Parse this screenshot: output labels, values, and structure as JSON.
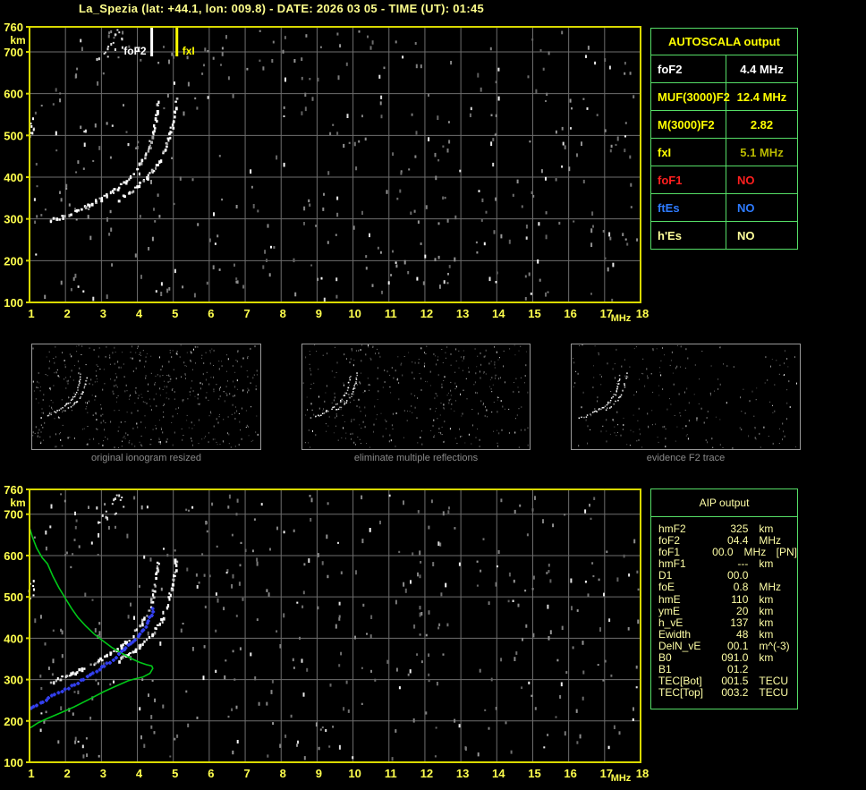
{
  "header": {
    "title": "La_Spezia (lat: +44.1, lon: 009.8) - DATE: 2026 03 05 - TIME (UT): 01:45"
  },
  "colors": {
    "plot_border": "#d9d900",
    "axis_label": "#ffff4d",
    "grid": "#6e6e6e",
    "panel_border": "#55dd66",
    "trace_white": "#ffffff",
    "profile_green": "#00c818",
    "restored_blue": "#3340f0",
    "caption_gray": "#8a8a8a",
    "title_yellow": "#ffff8c"
  },
  "autoscala": {
    "title": "AUTOSCALA output",
    "rows": [
      {
        "label": "foF2",
        "value": "4.4 MHz",
        "color": "#ffffff",
        "value_color": "#ffffff",
        "align": "center"
      },
      {
        "label": "MUF(3000)F2",
        "value": "12.4 MHz",
        "color": "#ffff00",
        "value_color": "#ffff00",
        "align": "center"
      },
      {
        "label": "M(3000)F2",
        "value": "2.82",
        "color": "#ffff00",
        "value_color": "#ffff00",
        "align": "center"
      },
      {
        "label": "fxI",
        "value": "5.1 MHz",
        "color": "#ffff00",
        "value_color": "#b9b900",
        "align": "center"
      },
      {
        "label": "foF1",
        "value": "NO",
        "color": "#ff1f1f",
        "value_color": "#ff1f1f",
        "align": "left"
      },
      {
        "label": "ftEs",
        "value": "NO",
        "color": "#2e7bff",
        "value_color": "#2e7bff",
        "align": "left"
      },
      {
        "label": "h'Es",
        "value": "NO",
        "color": "#ffff9b",
        "value_color": "#ffff9b",
        "align": "left"
      }
    ]
  },
  "aip": {
    "title": "AIP output",
    "rows": [
      {
        "label": "hmF2",
        "value": "325",
        "unit": "km",
        "note": ""
      },
      {
        "label": "foF2",
        "value": "04.4",
        "unit": "MHz",
        "note": ""
      },
      {
        "label": "foF1",
        "value": "00.0",
        "unit": "MHz",
        "note": "[PN]"
      },
      {
        "label": "hmF1",
        "value": "---",
        "unit": "km",
        "note": ""
      },
      {
        "label": "D1",
        "value": "00.0",
        "unit": "",
        "note": ""
      },
      {
        "label": "foE",
        "value": "0.8",
        "unit": "MHz",
        "note": ""
      },
      {
        "label": "hmE",
        "value": "110",
        "unit": "km",
        "note": ""
      },
      {
        "label": "ymE",
        "value": "20",
        "unit": "km",
        "note": ""
      },
      {
        "label": "h_vE",
        "value": "137",
        "unit": "km",
        "note": ""
      },
      {
        "label": "Ewidth",
        "value": "48",
        "unit": "km",
        "note": ""
      },
      {
        "label": "DelN_vE",
        "value": "00.1",
        "unit": "m^(-3)",
        "note": ""
      },
      {
        "label": "B0",
        "value": "091.0",
        "unit": "km",
        "note": ""
      },
      {
        "label": "B1",
        "value": "01.2",
        "unit": "",
        "note": ""
      },
      {
        "label": "TEC[Bot]",
        "value": "001.5",
        "unit": "TECU",
        "note": ""
      },
      {
        "label": "TEC[Top]",
        "value": "003.2",
        "unit": "TECU",
        "note": ""
      }
    ]
  },
  "thumbnails": [
    {
      "caption": "original ionogram resized",
      "noise": 520
    },
    {
      "caption": "eliminate multiple reflections",
      "noise": 400
    },
    {
      "caption": "evidence F2 trace",
      "noise": 230
    }
  ],
  "chart_data": [
    {
      "id": "top_ionogram",
      "type": "scatter",
      "title": "ionogram with AUTOSCALA frequency markers",
      "xlabel": "MHz",
      "ylabel": "km",
      "xlim": [
        1,
        18
      ],
      "ylim": [
        100,
        760
      ],
      "xticks": [
        1,
        2,
        3,
        4,
        5,
        6,
        7,
        8,
        9,
        10,
        11,
        12,
        13,
        14,
        15,
        16,
        17,
        18
      ],
      "yticks": [
        760,
        700,
        600,
        500,
        400,
        300,
        200,
        100
      ],
      "grid": true,
      "noise_dots": 400,
      "series": [
        {
          "name": "F2-O-trace",
          "color": "#ffffff",
          "style": "dotted-trace",
          "points": [
            [
              1.55,
              298
            ],
            [
              1.7,
              302
            ],
            [
              1.9,
              307
            ],
            [
              2.1,
              314
            ],
            [
              2.3,
              322
            ],
            [
              2.55,
              332
            ],
            [
              2.8,
              344
            ],
            [
              3.05,
              356
            ],
            [
              3.3,
              369
            ],
            [
              3.5,
              381
            ],
            [
              3.7,
              396
            ],
            [
              3.9,
              414
            ],
            [
              4.05,
              432
            ],
            [
              4.2,
              452
            ],
            [
              4.3,
              472
            ],
            [
              4.38,
              495
            ],
            [
              4.44,
              520
            ],
            [
              4.49,
              545
            ],
            [
              4.53,
              568
            ],
            [
              4.56,
              590
            ]
          ]
        },
        {
          "name": "F2-X-trace",
          "color": "#e8e8e8",
          "style": "dotted-trace",
          "points": [
            [
              3.45,
              350
            ],
            [
              3.65,
              360
            ],
            [
              3.85,
              372
            ],
            [
              4.05,
              386
            ],
            [
              4.25,
              402
            ],
            [
              4.45,
              420
            ],
            [
              4.6,
              440
            ],
            [
              4.72,
              462
            ],
            [
              4.82,
              485
            ],
            [
              4.9,
              508
            ],
            [
              4.96,
              532
            ],
            [
              5.01,
              556
            ],
            [
              5.04,
              578
            ],
            [
              5.06,
              598
            ]
          ]
        },
        {
          "name": "upper-echo-speckle",
          "color": "#dddddd",
          "style": "dots",
          "points": [
            [
              2.9,
              682
            ],
            [
              3.05,
              700
            ],
            [
              3.15,
              712
            ],
            [
              3.25,
              725
            ],
            [
              3.35,
              742
            ],
            [
              3.45,
              752
            ],
            [
              3.55,
              738
            ],
            [
              3.4,
              706
            ],
            [
              3.6,
              715
            ],
            [
              3.2,
              690
            ]
          ]
        },
        {
          "name": "left-edge-artifact",
          "color": "#ffffff",
          "style": "dots",
          "points": [
            [
              1.03,
              503
            ],
            [
              1.03,
              512
            ],
            [
              1.04,
              521
            ],
            [
              1.03,
              530
            ],
            [
              1.04,
              540
            ]
          ]
        }
      ],
      "annotations": [
        {
          "label": "foF2",
          "x": 4.4,
          "color": "#ffffff",
          "side": "left"
        },
        {
          "label": "fxI",
          "x": 5.1,
          "color": "#ffff00",
          "side": "right"
        }
      ]
    },
    {
      "id": "bottom_profile",
      "type": "scatter",
      "title": "ionogram with AIP electron density profile",
      "xlabel": "MHz",
      "ylabel": "km",
      "xlim": [
        1,
        18
      ],
      "ylim": [
        100,
        760
      ],
      "xticks": [
        1,
        2,
        3,
        4,
        5,
        6,
        7,
        8,
        9,
        10,
        11,
        12,
        13,
        14,
        15,
        16,
        17,
        18
      ],
      "yticks": [
        760,
        700,
        600,
        500,
        400,
        300,
        200,
        100
      ],
      "grid": true,
      "noise_dots": 400,
      "series": [
        {
          "name": "F2-O-trace",
          "color": "#ffffff",
          "style": "dotted-trace",
          "points": [
            [
              1.55,
              298
            ],
            [
              1.7,
              302
            ],
            [
              1.9,
              307
            ],
            [
              2.1,
              314
            ],
            [
              2.3,
              322
            ],
            [
              2.55,
              332
            ],
            [
              2.8,
              344
            ],
            [
              3.05,
              356
            ],
            [
              3.3,
              369
            ],
            [
              3.5,
              381
            ],
            [
              3.7,
              396
            ],
            [
              3.9,
              414
            ],
            [
              4.05,
              432
            ],
            [
              4.2,
              452
            ],
            [
              4.3,
              472
            ],
            [
              4.38,
              495
            ],
            [
              4.44,
              520
            ],
            [
              4.49,
              545
            ],
            [
              4.53,
              568
            ],
            [
              4.56,
              590
            ]
          ]
        },
        {
          "name": "F2-X-trace",
          "color": "#e8e8e8",
          "style": "dotted-trace",
          "points": [
            [
              3.45,
              350
            ],
            [
              3.65,
              360
            ],
            [
              3.85,
              372
            ],
            [
              4.05,
              386
            ],
            [
              4.25,
              402
            ],
            [
              4.45,
              420
            ],
            [
              4.6,
              440
            ],
            [
              4.72,
              462
            ],
            [
              4.82,
              485
            ],
            [
              4.9,
              508
            ],
            [
              4.96,
              532
            ],
            [
              5.01,
              556
            ],
            [
              5.04,
              578
            ],
            [
              5.06,
              598
            ]
          ]
        },
        {
          "name": "upper-echo-speckle",
          "color": "#dddddd",
          "style": "dots",
          "points": [
            [
              2.9,
              682
            ],
            [
              3.05,
              700
            ],
            [
              3.15,
              712
            ],
            [
              3.25,
              725
            ],
            [
              3.35,
              742
            ],
            [
              3.45,
              752
            ],
            [
              3.55,
              738
            ],
            [
              3.4,
              706
            ],
            [
              3.6,
              715
            ],
            [
              3.2,
              690
            ]
          ]
        },
        {
          "name": "left-edge-artifact",
          "color": "#ffffff",
          "style": "dots",
          "points": [
            [
              1.03,
              503
            ],
            [
              1.03,
              512
            ],
            [
              1.04,
              521
            ],
            [
              1.03,
              530
            ],
            [
              1.04,
              540
            ]
          ]
        },
        {
          "name": "electron-density-profile",
          "color": "#00c818",
          "style": "line",
          "points": [
            [
              1.0,
              667
            ],
            [
              1.08,
              645
            ],
            [
              1.2,
              618
            ],
            [
              1.35,
              595
            ],
            [
              1.5,
              580
            ],
            [
              1.65,
              550
            ],
            [
              1.82,
              522
            ],
            [
              2.0,
              496
            ],
            [
              2.17,
              472
            ],
            [
              2.35,
              450
            ],
            [
              2.57,
              429
            ],
            [
              2.8,
              410
            ],
            [
              3.07,
              392
            ],
            [
              3.3,
              377
            ],
            [
              3.56,
              364
            ],
            [
              3.8,
              352
            ],
            [
              4.06,
              342
            ],
            [
              4.25,
              336
            ],
            [
              4.4,
              333
            ],
            [
              4.43,
              327
            ],
            [
              4.35,
              315
            ],
            [
              4.15,
              306
            ],
            [
              3.9,
              301
            ],
            [
              3.74,
              297
            ],
            [
              3.4,
              284
            ],
            [
              3.07,
              271
            ],
            [
              2.65,
              252
            ],
            [
              2.24,
              234
            ],
            [
              1.85,
              219
            ],
            [
              1.5,
              206
            ],
            [
              1.25,
              196
            ],
            [
              1.07,
              186
            ],
            [
              1.0,
              183
            ]
          ]
        },
        {
          "name": "restored-true-height-trace",
          "color": "#3340f0",
          "style": "plus-markers",
          "points": [
            [
              1.05,
              230
            ],
            [
              1.3,
              243
            ],
            [
              1.62,
              260
            ],
            [
              1.9,
              272
            ],
            [
              2.17,
              284
            ],
            [
              2.45,
              297
            ],
            [
              2.67,
              310
            ],
            [
              2.95,
              325
            ],
            [
              3.17,
              338
            ],
            [
              3.4,
              352
            ],
            [
              3.56,
              368
            ],
            [
              3.75,
              382
            ],
            [
              3.94,
              396
            ],
            [
              4.08,
              410
            ],
            [
              4.19,
              422
            ],
            [
              4.28,
              436
            ],
            [
              4.36,
              450
            ],
            [
              4.42,
              464
            ],
            [
              4.46,
              479
            ]
          ]
        }
      ],
      "annotations": []
    }
  ]
}
